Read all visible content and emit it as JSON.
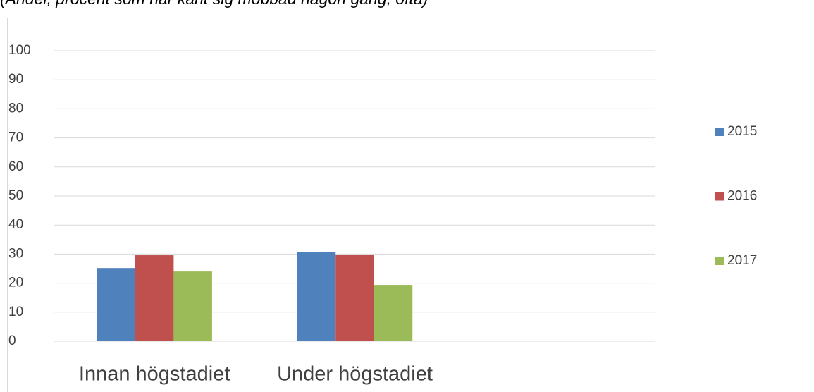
{
  "chart_data": {
    "type": "bar",
    "subtitle": "(Andel, procent som har känt sig mobbad någon gång, ofta)",
    "categories": [
      "Innan högstadiet",
      "Under högstadiet",
      null
    ],
    "series": [
      {
        "name": "2015",
        "color": "#4f81bd",
        "values": [
          25.2,
          30.8,
          null
        ]
      },
      {
        "name": "2016",
        "color": "#c0504d",
        "values": [
          29.6,
          29.8,
          null
        ]
      },
      {
        "name": "2017",
        "color": "#9bbb59",
        "values": [
          24,
          19.4,
          null
        ]
      }
    ],
    "ylim": [
      0,
      100
    ],
    "yticks": [
      0,
      10,
      20,
      30,
      40,
      50,
      60,
      70,
      80,
      90,
      100
    ],
    "grid": true,
    "legend": "right"
  }
}
